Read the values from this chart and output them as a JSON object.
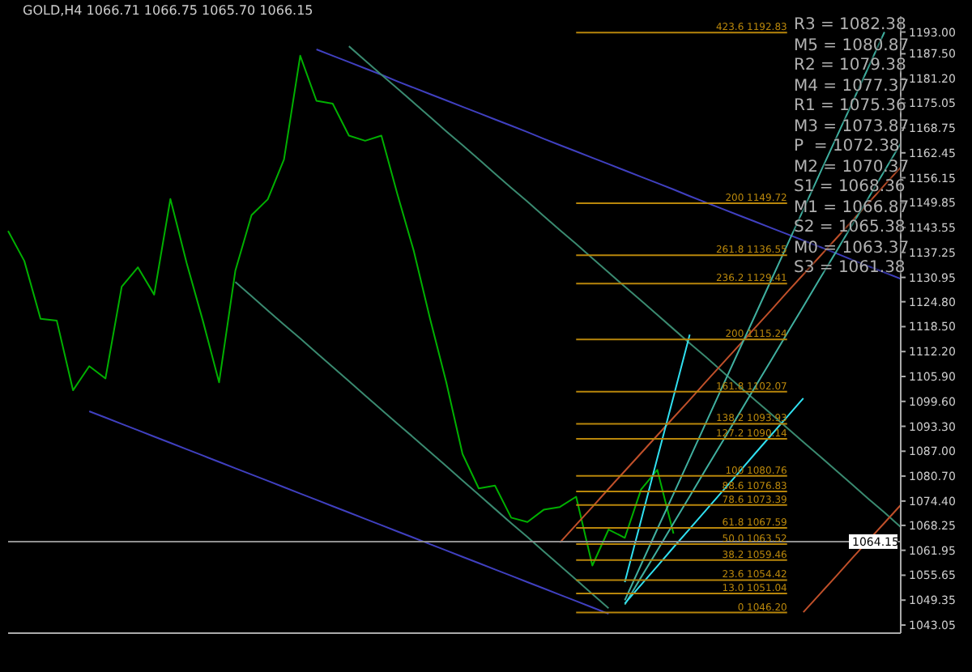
{
  "chart_data": {
    "type": "line",
    "title": "GOLD,H4  1066.71 1066.75 1065.70 1066.15",
    "categories": [
      null,
      null,
      null,
      null,
      null,
      null,
      null,
      null,
      null,
      null,
      null,
      null,
      null,
      null,
      null,
      null,
      null,
      null,
      null,
      null,
      null,
      null,
      null,
      null,
      null,
      null,
      null,
      null,
      null,
      null,
      null,
      null,
      null,
      null,
      null,
      null,
      null,
      null,
      null,
      null,
      null,
      null,
      null,
      null,
      null,
      null,
      null,
      null,
      null,
      null,
      null,
      null,
      null,
      null,
      null,
      null
    ],
    "ylim": [
      1041,
      1197
    ],
    "tick_labels": "y",
    "grid": false,
    "yticks": [
      {
        "value": 1193.0,
        "label": "1193.00"
      },
      {
        "value": 1187.5,
        "label": "1187.50"
      },
      {
        "value": 1181.2,
        "label": "1181.20"
      },
      {
        "value": 1175.05,
        "label": "1175.05"
      },
      {
        "value": 1168.75,
        "label": "1168.75"
      },
      {
        "value": 1162.45,
        "label": "1162.45"
      },
      {
        "value": 1156.15,
        "label": "1156.15"
      },
      {
        "value": 1149.85,
        "label": "1149.85"
      },
      {
        "value": 1143.55,
        "label": "1143.55"
      },
      {
        "value": 1137.25,
        "label": "1137.25"
      },
      {
        "value": 1130.95,
        "label": "1130.95"
      },
      {
        "value": 1124.8,
        "label": "1124.80"
      },
      {
        "value": 1118.5,
        "label": "1118.50"
      },
      {
        "value": 1112.2,
        "label": "1112.20"
      },
      {
        "value": 1105.9,
        "label": "1105.90"
      },
      {
        "value": 1099.6,
        "label": "1099.60"
      },
      {
        "value": 1093.3,
        "label": "1093.30"
      },
      {
        "value": 1087.0,
        "label": "1087.00"
      },
      {
        "value": 1080.7,
        "label": "1080.70"
      },
      {
        "value": 1074.4,
        "label": "1074.40"
      },
      {
        "value": 1068.25,
        "label": "1068.25"
      },
      {
        "value": 1061.95,
        "label": "1061.95"
      },
      {
        "value": 1055.65,
        "label": "1055.65"
      },
      {
        "value": 1049.35,
        "label": "1049.35"
      },
      {
        "value": 1043.05,
        "label": "1043.05"
      }
    ],
    "series": [
      {
        "color": "#00b000",
        "values": [
          1142.7,
          1135.1,
          1120.5,
          1120.0,
          1102.4,
          1108.5,
          1105.4,
          1128.6,
          1133.5,
          1126.6,
          1150.8,
          1134.6,
          1120.0,
          1104.4,
          1132.6,
          1146.7,
          1150.7,
          1160.8,
          1187.0,
          1175.6,
          1174.9,
          1166.8,
          1165.5,
          1166.8,
          1151.8,
          1137.6,
          1120.5,
          1104.4,
          1086.3,
          1077.6,
          1078.3,
          1070.2,
          1069.1,
          1072.2,
          1072.9,
          1075.5,
          1058.1,
          1067.2,
          1065.1,
          1077.3,
          1082.3,
          1066.2,
          null,
          null,
          null,
          null,
          null,
          null,
          null,
          null,
          null,
          null,
          null,
          null,
          null,
          null
        ]
      },
      {
        "color": "#4040c0",
        "values": [
          null,
          null,
          null,
          null,
          null,
          null,
          null,
          null,
          null,
          null,
          null,
          null,
          null,
          null,
          null,
          null,
          null,
          null,
          null,
          1188.6,
          1187.0,
          1185.4,
          1183.8,
          1182.2,
          1180.5,
          1178.9,
          1177.3,
          1175.7,
          1174.1,
          1172.5,
          1170.9,
          1169.3,
          1167.7,
          1166.0,
          1164.4,
          1162.8,
          1161.2,
          1159.6,
          1158.0,
          1156.4,
          1154.8,
          1153.2,
          1151.5,
          1149.9,
          1148.3,
          1146.7,
          1145.1,
          1143.5,
          1141.9,
          1140.3,
          1138.7,
          1137.1,
          1135.4,
          1133.8,
          1132.2,
          1130.6
        ]
      },
      {
        "color": "#4040c0",
        "values": [
          null,
          null,
          null,
          null,
          null,
          1097.1,
          1095.5,
          1093.9,
          1092.3,
          1090.7,
          1089.1,
          1087.5,
          1085.9,
          1084.3,
          1082.7,
          1081.1,
          1079.5,
          1077.9,
          1076.3,
          1074.7,
          1073.1,
          1071.5,
          1069.9,
          1068.3,
          1066.7,
          1065.1,
          1063.5,
          1061.9,
          1060.3,
          1058.7,
          1057.1,
          1055.5,
          1053.9,
          1052.3,
          1050.7,
          1049.1,
          1047.5,
          1045.9,
          null,
          null,
          null,
          null,
          null,
          null,
          null,
          null,
          null,
          null,
          null,
          null,
          null,
          null,
          null,
          null,
          null,
          null
        ]
      },
      {
        "color": "#3a8a70",
        "values": [
          null,
          null,
          null,
          null,
          null,
          null,
          null,
          null,
          null,
          null,
          null,
          null,
          null,
          null,
          null,
          null,
          null,
          null,
          null,
          null,
          null,
          1189.4,
          1185.8,
          1182.2,
          1178.7,
          1175.1,
          1171.5,
          1167.9,
          1164.4,
          1160.8,
          1157.2,
          1153.6,
          1150.1,
          1146.5,
          1142.9,
          1139.4,
          1135.8,
          1132.2,
          1128.6,
          1125.1,
          1121.5,
          1117.9,
          1114.3,
          1110.8,
          1107.2,
          1103.6,
          1100.0,
          1096.5,
          1092.9,
          1089.3,
          1085.8,
          1082.2,
          1078.6,
          1075.0,
          1071.5,
          1067.8
        ]
      },
      {
        "color": "#3a8a70",
        "values": [
          null,
          null,
          null,
          null,
          null,
          null,
          null,
          null,
          null,
          null,
          null,
          null,
          null,
          null,
          1129.8,
          1126.2,
          1122.6,
          1119.0,
          1115.5,
          1111.9,
          1108.3,
          1104.7,
          1101.1,
          1097.5,
          1093.9,
          1090.4,
          1086.8,
          1083.2,
          1079.6,
          1076.0,
          1072.4,
          1068.8,
          1065.3,
          1061.7,
          1058.1,
          1054.5,
          1050.9,
          1047.3,
          null,
          null,
          null,
          null,
          null,
          null,
          null,
          null,
          null,
          null,
          null,
          null,
          null,
          null,
          null,
          null,
          null,
          null
        ]
      },
      {
        "color": "#c0502a",
        "values": [
          null,
          null,
          null,
          null,
          null,
          null,
          null,
          null,
          null,
          null,
          null,
          null,
          null,
          null,
          null,
          null,
          null,
          null,
          null,
          null,
          null,
          null,
          null,
          null,
          null,
          null,
          null,
          null,
          null,
          null,
          null,
          null,
          null,
          null,
          1063.9,
          1068.4,
          1072.9,
          1077.5,
          1082.0,
          1086.5,
          1091.0,
          1095.5,
          1100.0,
          1104.6,
          1109.1,
          1113.6,
          1118.1,
          1122.6,
          1127.2,
          1131.7,
          1136.2,
          1140.7,
          1145.2,
          1149.7,
          1154.3,
          1158.8
        ]
      },
      {
        "color": "#c0502a",
        "values": [
          null,
          null,
          null,
          null,
          null,
          null,
          null,
          null,
          null,
          null,
          null,
          null,
          null,
          null,
          null,
          null,
          null,
          null,
          null,
          null,
          null,
          null,
          null,
          null,
          null,
          null,
          null,
          null,
          null,
          null,
          null,
          null,
          null,
          null,
          null,
          null,
          null,
          null,
          null,
          null,
          null,
          null,
          null,
          null,
          null,
          null,
          null,
          null,
          null,
          1046.3,
          1050.8,
          1055.3,
          1059.9,
          1064.4,
          1068.9,
          1073.4
        ]
      },
      {
        "color": "#40b0a0",
        "values": [
          null,
          null,
          null,
          null,
          null,
          null,
          null,
          null,
          null,
          null,
          null,
          null,
          null,
          null,
          null,
          null,
          null,
          null,
          null,
          null,
          null,
          null,
          null,
          null,
          null,
          null,
          null,
          null,
          null,
          null,
          null,
          null,
          null,
          null,
          null,
          null,
          null,
          null,
          1049.3,
          1058.3,
          1067.3,
          1076.2,
          1085.2,
          1094.2,
          1103.2,
          1112.2,
          1121.1,
          1130.1,
          1139.1,
          1148.1,
          1157.1,
          1166.0,
          1175.0,
          1184.0,
          1193.0,
          null
        ]
      },
      {
        "color": "#40b0a0",
        "values": [
          null,
          null,
          null,
          null,
          null,
          null,
          null,
          null,
          null,
          null,
          null,
          null,
          null,
          null,
          null,
          null,
          null,
          null,
          null,
          null,
          null,
          null,
          null,
          null,
          null,
          null,
          null,
          null,
          null,
          null,
          null,
          null,
          null,
          null,
          null,
          null,
          null,
          null,
          1048.2,
          1055.1,
          1061.9,
          1068.8,
          1075.6,
          1082.5,
          1089.3,
          1096.2,
          1103.1,
          1109.9,
          1116.8,
          1123.6,
          1130.5,
          1137.3,
          1144.2,
          1151.0,
          1157.9,
          1164.8
        ]
      },
      {
        "color": "#30e0f0",
        "values": [
          null,
          null,
          null,
          null,
          null,
          null,
          null,
          null,
          null,
          null,
          null,
          null,
          null,
          null,
          null,
          null,
          null,
          null,
          null,
          null,
          null,
          null,
          null,
          null,
          null,
          null,
          null,
          null,
          null,
          null,
          null,
          null,
          null,
          null,
          null,
          null,
          null,
          null,
          1053.9,
          1069.5,
          1085.2,
          1100.8,
          1116.5,
          null,
          null,
          null,
          null,
          null,
          null,
          null,
          null,
          null,
          null,
          null,
          null,
          null
        ]
      },
      {
        "color": "#30e0f0",
        "values": [
          null,
          null,
          null,
          null,
          null,
          null,
          null,
          null,
          null,
          null,
          null,
          null,
          null,
          null,
          null,
          null,
          null,
          null,
          null,
          null,
          null,
          null,
          null,
          null,
          null,
          null,
          null,
          null,
          null,
          null,
          null,
          null,
          null,
          null,
          null,
          null,
          null,
          null,
          1048.5,
          1053.2,
          1057.9,
          1062.7,
          1067.4,
          1072.1,
          1076.8,
          1081.5,
          1086.3,
          1091.0,
          1095.7,
          1100.4,
          null,
          null,
          null,
          null,
          null,
          null
        ]
      },
      {
        "name": "1064.15",
        "color": "#909090",
        "values": [
          1064.15,
          1064.15,
          1064.15,
          1064.15,
          1064.15,
          1064.15,
          1064.15,
          1064.15,
          1064.15,
          1064.15,
          1064.15,
          1064.15,
          1064.15,
          1064.15,
          1064.15,
          1064.15,
          1064.15,
          1064.15,
          1064.15,
          1064.15,
          1064.15,
          1064.15,
          1064.15,
          1064.15,
          1064.15,
          1064.15,
          1064.15,
          1064.15,
          1064.15,
          1064.15,
          1064.15,
          1064.15,
          1064.15,
          1064.15,
          1064.15,
          1064.15,
          1064.15,
          1064.15,
          1064.15,
          1064.15,
          1064.15,
          1064.15,
          1064.15,
          1064.15,
          1064.15,
          1064.15,
          1064.15,
          1064.15,
          1064.15,
          1064.15,
          1064.15,
          1064.15,
          1064.15,
          1064.15,
          1064.15,
          1064.15
        ]
      }
    ],
    "ref_lines": [
      {
        "axis": "y",
        "value": 1192.83,
        "label": "423.6 1192.83",
        "color": "#b8860b"
      },
      {
        "axis": "y",
        "value": 1149.72,
        "label": "200 1149.72",
        "color": "#b8860b"
      },
      {
        "axis": "y",
        "value": 1136.55,
        "label": "261.8 1136.55",
        "color": "#b8860b"
      },
      {
        "axis": "y",
        "value": 1129.41,
        "label": "236.2 1129.41",
        "color": "#b8860b"
      },
      {
        "axis": "y",
        "value": 1115.24,
        "label": "200 1115.24",
        "color": "#b8860b"
      },
      {
        "axis": "y",
        "value": 1102.07,
        "label": "161.8 1102.07",
        "color": "#b8860b"
      },
      {
        "axis": "y",
        "value": 1093.93,
        "label": "138.2 1093.93",
        "color": "#b8860b"
      },
      {
        "axis": "y",
        "value": 1090.14,
        "label": "127.2 1090.14",
        "color": "#b8860b"
      },
      {
        "axis": "y",
        "value": 1080.76,
        "label": "100 1080.76",
        "color": "#b8860b"
      },
      {
        "axis": "y",
        "value": 1076.83,
        "label": "88.6 1076.83",
        "color": "#b8860b"
      },
      {
        "axis": "y",
        "value": 1073.39,
        "label": "78.6 1073.39",
        "color": "#b8860b"
      },
      {
        "axis": "y",
        "value": 1067.59,
        "label": "61.8 1067.59",
        "color": "#b8860b"
      },
      {
        "axis": "y",
        "value": 1063.52,
        "label": "50.0 1063.52",
        "color": "#b8860b"
      },
      {
        "axis": "y",
        "value": 1059.46,
        "label": "38.2 1059.46",
        "color": "#b8860b"
      },
      {
        "axis": "y",
        "value": 1054.42,
        "label": "23.6 1054.42",
        "color": "#b8860b"
      },
      {
        "axis": "y",
        "value": 1051.04,
        "label": "13.0 1051.04",
        "color": "#b8860b"
      },
      {
        "axis": "y",
        "value": 1046.2,
        "label": "0 1046.20",
        "color": "#b8860b"
      }
    ],
    "annotations": [
      "R3 = 1082.38",
      "M5 = 1080.87",
      "R2 = 1079.38",
      "M4 = 1077.37",
      "R1 = 1075.36",
      "M3 = 1073.87",
      "P  = 1072.38",
      "M2 = 1070.37",
      "S1 = 1068.36",
      "M1 = 1066.87",
      "S2 = 1065.38",
      "M0 = 1063.37",
      "S3 = 1061.38"
    ]
  }
}
